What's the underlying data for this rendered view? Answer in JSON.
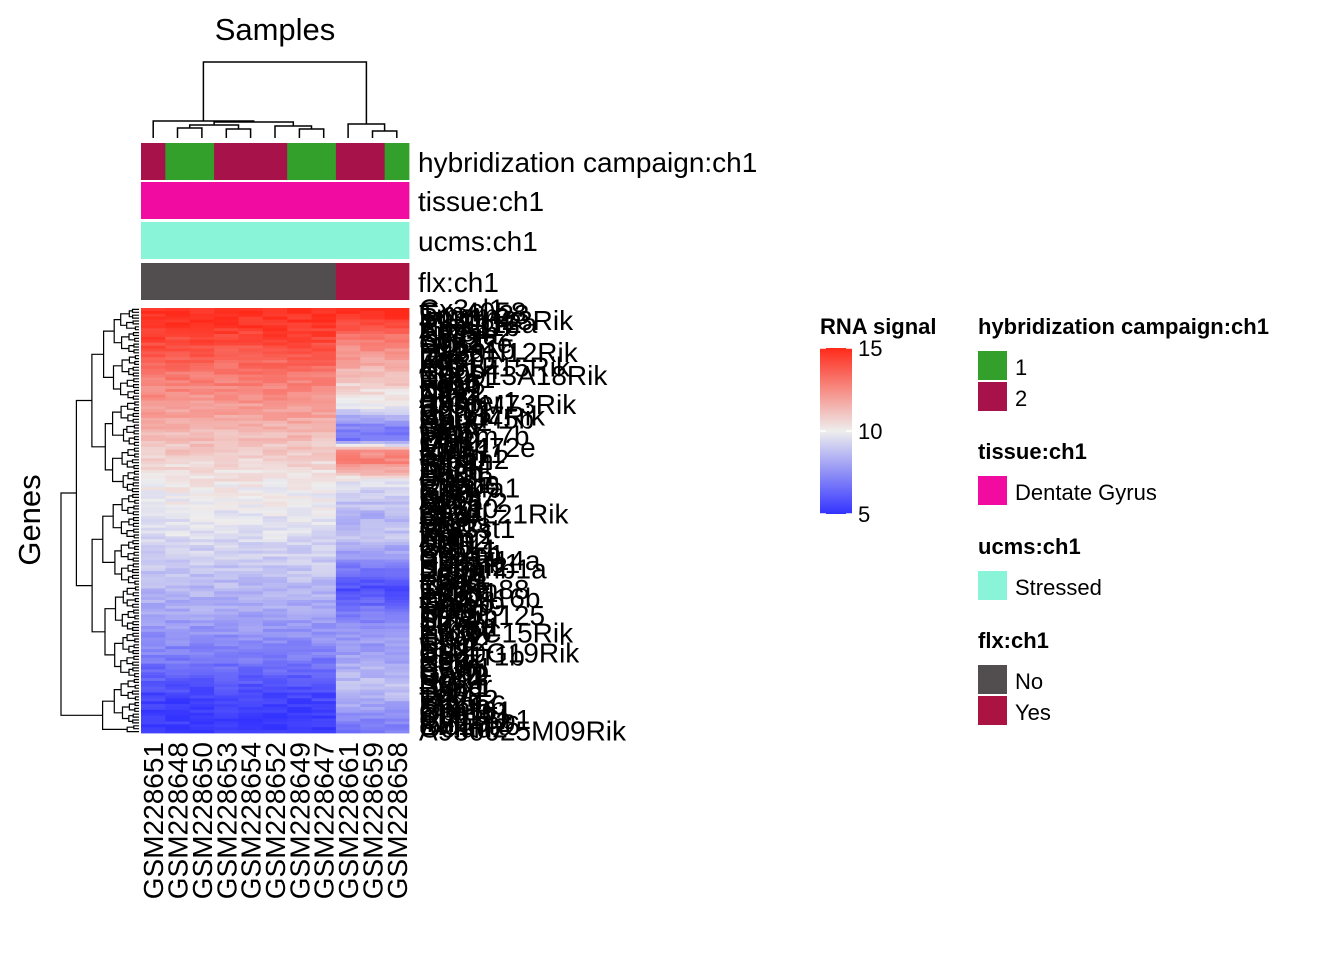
{
  "chart_data": {
    "type": "heatmap",
    "title": "Samples",
    "ylabel": "Genes",
    "samples": [
      "GSM228651",
      "GSM228648",
      "GSM228650",
      "GSM228653",
      "GSM228654",
      "GSM228652",
      "GSM228649",
      "GSM228647",
      "GSM228661",
      "GSM228659",
      "GSM228658"
    ],
    "gene_labels": [
      "Cx3cl1",
      "Gm4058",
      "Tmem23",
      "Ppp1r3c",
      "4930H23Rik",
      "Pla2g12a",
      "Rasl11b",
      "Acss2",
      "Tmem2",
      "Nfkbia",
      "Scg2",
      "Sgk1",
      "Gpr22e",
      "Mt2",
      "Hspa1b",
      "D430N12Rik",
      "Ier2",
      "Dusp1",
      "Fos",
      "Arc",
      "4931F15Rik",
      "Npas4",
      "Egr2",
      "C80913A18Rik",
      "Nr4a1",
      "Junb",
      "Fosb",
      "Egr4",
      "Klf4",
      "Ntrk2",
      "Pdk4",
      "Atf3",
      "Homer1",
      "9330M73Rik",
      "Bdnf",
      "Vgf",
      "Cyr61",
      "B0D17Rik",
      "Gadd45b",
      "Nptx2",
      "Egr3",
      "Gem",
      "Ctgf",
      "Mbp",
      "Tmem7b",
      "Plp1",
      "Car2",
      "Mobp",
      "Mir1472e",
      "Mag",
      "Cldn11",
      "Ermn",
      "Tspan2",
      "Gjc2",
      "Sept4",
      "Trf",
      "Apod",
      "Fa2h",
      "Ugt8a",
      "Pllp",
      "Opalin",
      "Enpp6",
      "Slc44a1",
      "Gsn",
      "Klk6",
      "Gpr37",
      "Aspa",
      "Nkx6-2",
      "Mog",
      "Sox10",
      "Olig1",
      "8430L21Rik",
      "Cnp",
      "Qk",
      "Ptgds",
      "Myrf",
      "Gal3st1",
      "Tnr",
      "Ndrg1",
      "Anln",
      "Ttyh2",
      "Mal",
      "Gltp",
      "Car14",
      "Bcas1",
      "Slc2a1",
      "Cdh19",
      "Ppp1r14a",
      "Plekhb1",
      "Hapln2",
      "Serpinb1a",
      "Fgfr2",
      "Psat1",
      "Kif5a",
      "Lpar1",
      "Prr18",
      "Cd9",
      "Tmem88",
      "Fnbp1",
      "Il33",
      "Ppp1r16b",
      "Gm98",
      "Cryab",
      "Trim59",
      "Nat8l",
      "Prr5l",
      "Tmem125",
      "Sirt2",
      "Sgk2",
      "Mcam",
      "Ermp1",
      "Pex5l",
      "1300C15Rik",
      "Elovl7",
      "Hhip",
      "Chst2",
      "Npy",
      "Tac2",
      "Sst",
      "C330G19Rik",
      "Ppp1r1b",
      "Penk",
      "Cck",
      "Nrgn",
      "Calb1",
      "Pvalb",
      "Gad1",
      "Gad2",
      "Pcp4",
      "Nts",
      "Synpr",
      "Prox1",
      "Dsp",
      "Lct",
      "Tdo2",
      "Pdzd2",
      "Trpc6",
      "Stxbp6",
      "Npnt",
      "Gpr161",
      "Ctxn3",
      "Spp1",
      "Cyp26b1",
      "Il1rapl2",
      "Slc17a6",
      "Ociad2",
      "A930025M09Rik"
    ],
    "color_scale": {
      "name": "RNA signal",
      "min": 5,
      "mid": 10,
      "max": 15,
      "colors": [
        "#3333ff",
        "#eeeeee",
        "#ff2a1a"
      ],
      "ticks": [
        5,
        10,
        15
      ],
      "tick_labels": [
        "5",
        "10",
        "15"
      ]
    },
    "annotations": [
      {
        "name": "hybridization campaign:ch1",
        "values": [
          2,
          1,
          1,
          2,
          2,
          2,
          1,
          1,
          2,
          2,
          1
        ]
      },
      {
        "name": "tissue:ch1",
        "values": [
          "Dentate Gyrus",
          "Dentate Gyrus",
          "Dentate Gyrus",
          "Dentate Gyrus",
          "Dentate Gyrus",
          "Dentate Gyrus",
          "Dentate Gyrus",
          "Dentate Gyrus",
          "Dentate Gyrus",
          "Dentate Gyrus",
          "Dentate Gyrus"
        ]
      },
      {
        "name": "ucms:ch1",
        "values": [
          "Stressed",
          "Stressed",
          "Stressed",
          "Stressed",
          "Stressed",
          "Stressed",
          "Stressed",
          "Stressed",
          "Stressed",
          "Stressed",
          "Stressed"
        ]
      },
      {
        "name": "flx:ch1",
        "values": [
          "No",
          "No",
          "No",
          "No",
          "No",
          "No",
          "No",
          "No",
          "Yes",
          "Yes",
          "Yes"
        ]
      }
    ],
    "legends": [
      {
        "title": "hybridization campaign:ch1",
        "items": [
          {
            "label": "1",
            "color": "#33a02c"
          },
          {
            "label": "2",
            "color": "#a8124a"
          }
        ]
      },
      {
        "title": "tissue:ch1",
        "items": [
          {
            "label": "Dentate Gyrus",
            "color": "#f10ba0"
          }
        ]
      },
      {
        "title": "ucms:ch1",
        "items": [
          {
            "label": "Stressed",
            "color": "#89f4d8"
          }
        ]
      },
      {
        "title": "flx:ch1",
        "items": [
          {
            "label": "No",
            "color": "#524d4f"
          },
          {
            "label": "Yes",
            "color": "#ab1342"
          }
        ]
      }
    ],
    "row_profile": {
      "note_values_group1": [
        15.0,
        14.8,
        14.5,
        14.2,
        13.8,
        13.4,
        13.0,
        12.7,
        12.4,
        12.1,
        11.8,
        11.5,
        11.2,
        11.0,
        10.7,
        10.4,
        10.2,
        10.0,
        9.9,
        9.8,
        9.7,
        9.5,
        9.3,
        9.1,
        8.9,
        8.7,
        8.5,
        8.3,
        8.1,
        7.8,
        7.6,
        7.3,
        7.0,
        6.6,
        6.2,
        5.8,
        5.5,
        5.3,
        5.2,
        5.1
      ],
      "note_values_group2": [
        15.0,
        14.6,
        13.6,
        12.8,
        12.2,
        11.8,
        11.2,
        10.8,
        10.2,
        9.8,
        8.2,
        7.0,
        6.6,
        12.3,
        12.8,
        11.5,
        9.6,
        9.2,
        8.8,
        8.4,
        8.6,
        9.2,
        8.2,
        7.6,
        6.8,
        6.0,
        5.8,
        6.4,
        6.9,
        7.3,
        7.6,
        7.8,
        8.0,
        8.3,
        8.6,
        8.7,
        8.4,
        7.8,
        7.2,
        6.8
      ]
    }
  }
}
